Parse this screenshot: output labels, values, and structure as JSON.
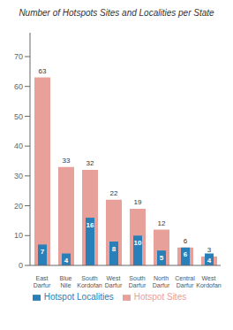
{
  "chart_data": {
    "type": "bar",
    "title": "Number of Hotspots Sites and Localities per State",
    "categories": [
      "East Darfur",
      "Blue Nile",
      "South Kordofan",
      "West Darfur",
      "South Darfur",
      "North Darfur",
      "Central Darfur",
      "West Kordofan"
    ],
    "series": [
      {
        "name": "Hotspot Sites",
        "color": "#e8a09a",
        "values": [
          63,
          33,
          32,
          22,
          19,
          12,
          6,
          3
        ]
      },
      {
        "name": "Hotspot Localities",
        "color": "#2980b9",
        "values": [
          7,
          4,
          16,
          8,
          10,
          5,
          6,
          4
        ]
      }
    ],
    "ylim": [
      0,
      78
    ],
    "yticks": [
      0,
      10,
      20,
      30,
      40,
      50,
      60,
      70
    ],
    "grid": false,
    "data_labels": true,
    "legend": "bottom"
  }
}
